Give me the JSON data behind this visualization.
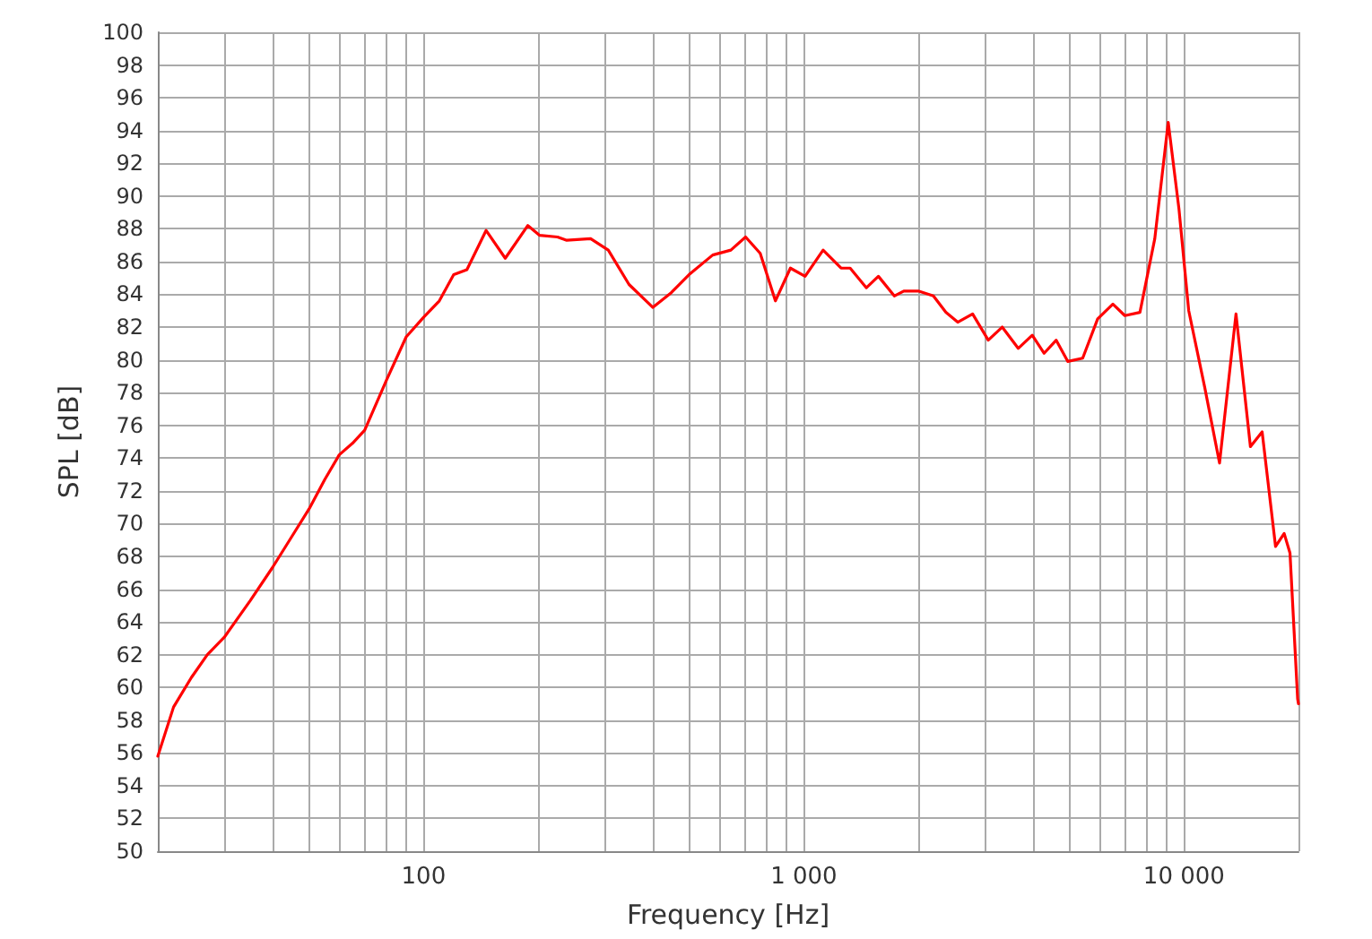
{
  "chart_data": {
    "type": "line",
    "xlabel": "Frequency [Hz]",
    "ylabel": "SPL [dB]",
    "log": "x",
    "grid": true,
    "marker": "none",
    "line_style": "solid",
    "xlim": [
      20,
      20000
    ],
    "ylim": [
      50,
      100
    ],
    "xticks": [
      {
        "value": 20,
        "label": null
      },
      {
        "value": 30,
        "label": null
      },
      {
        "value": 40,
        "label": null
      },
      {
        "value": 50,
        "label": null
      },
      {
        "value": 60,
        "label": null
      },
      {
        "value": 70,
        "label": null
      },
      {
        "value": 80,
        "label": null
      },
      {
        "value": 90,
        "label": null
      },
      100,
      {
        "value": 200,
        "label": null
      },
      {
        "value": 300,
        "label": null
      },
      {
        "value": 400,
        "label": null
      },
      {
        "value": 500,
        "label": null
      },
      {
        "value": 600,
        "label": null
      },
      {
        "value": 700,
        "label": null
      },
      {
        "value": 800,
        "label": null
      },
      {
        "value": 900,
        "label": null
      },
      {
        "value": 1000,
        "label": "1 000"
      },
      {
        "value": 2000,
        "label": null
      },
      {
        "value": 3000,
        "label": null
      },
      {
        "value": 4000,
        "label": null
      },
      {
        "value": 5000,
        "label": null
      },
      {
        "value": 6000,
        "label": null
      },
      {
        "value": 7000,
        "label": null
      },
      {
        "value": 8000,
        "label": null
      },
      {
        "value": 9000,
        "label": null
      },
      {
        "value": 10000,
        "label": "10 000"
      },
      {
        "value": 20000,
        "label": null
      }
    ],
    "yticks": [
      50,
      52,
      54,
      56,
      58,
      60,
      62,
      64,
      66,
      68,
      70,
      72,
      74,
      76,
      78,
      80,
      82,
      84,
      86,
      88,
      90,
      92,
      94,
      96,
      98,
      100
    ],
    "series": [
      {
        "color": "#ff0000",
        "x": [
          20,
          22,
          24.5,
          27,
          30,
          35,
          40,
          45,
          50,
          55,
          60,
          65,
          70,
          80,
          90,
          100,
          110,
          120,
          130,
          146,
          164,
          188,
          202,
          225,
          238,
          275,
          306,
          347,
          401,
          448,
          499,
          576,
          643,
          703,
          768,
          842,
          922,
          1008,
          1124,
          1253,
          1324,
          1461,
          1571,
          1730,
          1832,
          2000,
          2192,
          2364,
          2540,
          2780,
          3056,
          3325,
          3664,
          3989,
          4287,
          4612,
          4949,
          5414,
          5928,
          6500,
          6988,
          7657,
          8378,
          9088,
          9700,
          10290,
          11340,
          12400,
          13700,
          14950,
          16050,
          17410,
          18340,
          19000,
          19900,
          20000
        ],
        "values": [
          55.8,
          58.8,
          60.6,
          62,
          63.1,
          65.3,
          67.3,
          69.2,
          70.9,
          72.7,
          74.2,
          74.9,
          75.7,
          78.8,
          81.4,
          82.6,
          83.6,
          85.2,
          85.5,
          87.9,
          86.2,
          88.2,
          87.6,
          87.5,
          87.3,
          87.4,
          86.7,
          84.6,
          83.2,
          84.1,
          85.2,
          86.4,
          86.7,
          87.5,
          86.5,
          83.6,
          85.6,
          85.1,
          86.7,
          85.6,
          85.6,
          84.4,
          85.1,
          83.9,
          84.2,
          84.2,
          83.9,
          82.9,
          82.3,
          82.8,
          81.2,
          82.0,
          80.7,
          81.5,
          80.4,
          81.2,
          79.9,
          80.1,
          82.5,
          83.4,
          82.7,
          82.9,
          87.4,
          94.5,
          89.2,
          83.0,
          78.3,
          73.7,
          82.8,
          74.7,
          75.6,
          68.6,
          69.4,
          68.2,
          59.3,
          59.0
        ]
      }
    ]
  }
}
